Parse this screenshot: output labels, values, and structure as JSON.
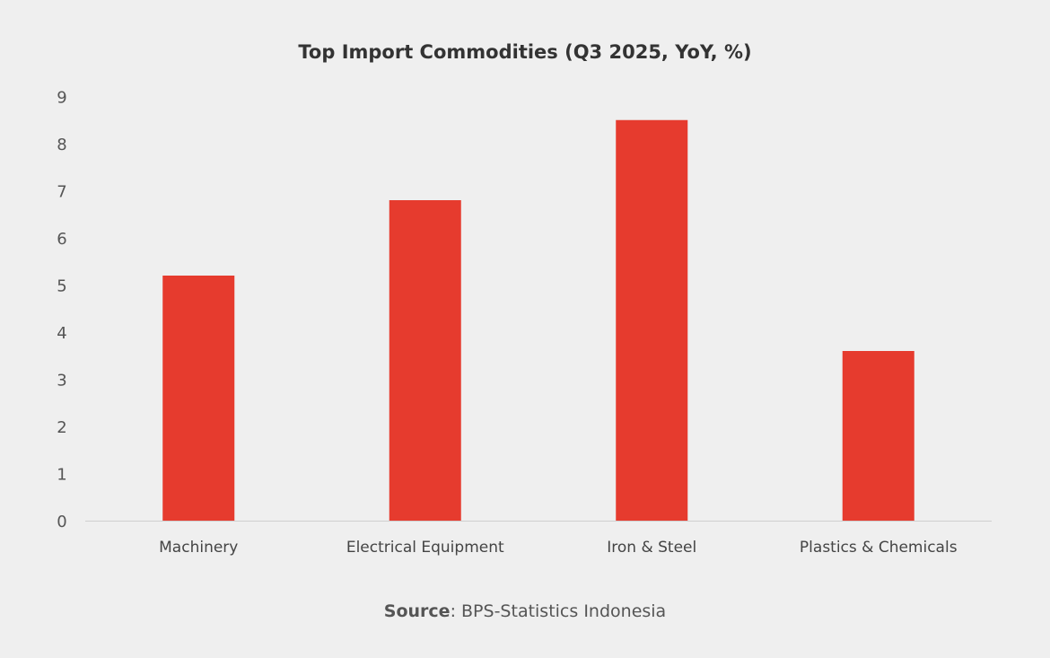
{
  "chart_data": {
    "type": "bar",
    "title": "Top Import Commodities (Q3 2025, YoY, %)",
    "categories": [
      "Machinery",
      "Electrical Equipment",
      "Iron & Steel",
      "Plastics & Chemicals"
    ],
    "values": [
      5.2,
      6.8,
      8.5,
      3.6
    ],
    "xlabel": "",
    "ylabel": "",
    "ylim": [
      0,
      9
    ],
    "yticks": [
      "0",
      "1",
      "2",
      "3",
      "4",
      "5",
      "6",
      "7",
      "8",
      "9"
    ],
    "grid": false,
    "bar_color": "#e63b2e"
  },
  "source": {
    "label": "Source",
    "text": ": BPS-Statistics Indonesia"
  }
}
